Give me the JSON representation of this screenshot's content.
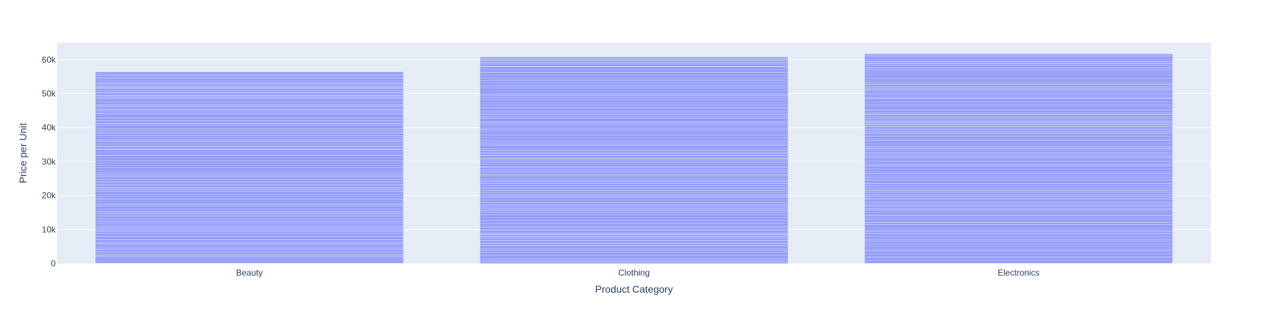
{
  "chart_data": {
    "type": "bar",
    "title": "",
    "xlabel": "Product Category",
    "ylabel": "Price per Unit",
    "categories": [
      "Beauty",
      "Clothing",
      "Electronics"
    ],
    "values": [
      56400,
      60800,
      61700
    ],
    "ylim": [
      0,
      65000
    ],
    "yticks": [
      0,
      10000,
      20000,
      30000,
      40000,
      50000,
      60000
    ],
    "ytick_labels": [
      "0",
      "10k",
      "20k",
      "30k",
      "40k",
      "50k",
      "60k"
    ],
    "grid": true,
    "legend": "none",
    "colors": {
      "bar": "#636efa",
      "plot_background": "#e5ecf6",
      "grid": "#ffffff",
      "text": "#2a3f5f"
    }
  }
}
